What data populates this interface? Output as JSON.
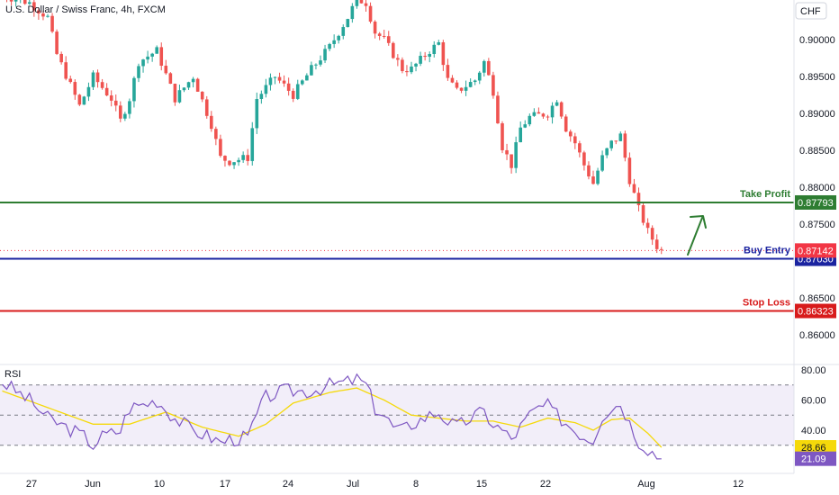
{
  "chart_title": "U.S. Dollar / Swiss Franc, 4h, FXCM",
  "currency_label": "CHF",
  "price_axis": {
    "ticks": [
      "0.90000",
      "0.89500",
      "0.89000",
      "0.88500",
      "0.88000",
      "0.87500",
      "0.86500",
      "0.86000"
    ]
  },
  "time_axis": {
    "ticks": [
      "27",
      "Jun",
      "10",
      "17",
      "24",
      "Jul",
      "8",
      "15",
      "22",
      "Aug",
      "12"
    ]
  },
  "levels": [
    {
      "name": "Take Profit",
      "value": 0.87793,
      "label": "0.87793",
      "color": "#2e7d32"
    },
    {
      "name": "Buy Entry",
      "value": 0.8703,
      "label": "0.87030",
      "color": "#1a23a0"
    },
    {
      "name": "Stop Loss",
      "value": 0.86323,
      "label": "0.86323",
      "color": "#d81b1b"
    }
  ],
  "current_price": {
    "value": 0.87142,
    "label": "0.87142",
    "color": "#f23645"
  },
  "rsi": {
    "label": "RSI",
    "ticks": [
      "80.00",
      "60.00",
      "40.00"
    ],
    "upper_band": 70,
    "middle_band": 50,
    "lower_band": 30,
    "ma_value_label": "28.66",
    "rsi_value_label": "21.09",
    "ma_color": "#f5d90a",
    "rsi_color": "#7e57c2"
  },
  "colors": {
    "up": "#26a69a",
    "down": "#ef5350",
    "accent_arrow": "#2e7d32"
  },
  "chart_data": {
    "type": "candlestick",
    "title": "U.S. Dollar / Swiss Franc, 4h, FXCM",
    "ylabel": "CHF",
    "ylim": [
      0.8575,
      0.9055
    ],
    "key_path": [
      [
        0,
        0.906
      ],
      [
        6,
        0.905
      ],
      [
        10,
        0.903
      ],
      [
        12,
        0.898
      ],
      [
        17,
        0.891
      ],
      [
        20,
        0.895
      ],
      [
        24,
        0.892
      ],
      [
        26,
        0.889
      ],
      [
        28,
        0.892
      ],
      [
        30,
        0.897
      ],
      [
        34,
        0.8985
      ],
      [
        38,
        0.892
      ],
      [
        42,
        0.895
      ],
      [
        46,
        0.8885
      ],
      [
        48,
        0.884
      ],
      [
        50,
        0.8835
      ],
      [
        54,
        0.884
      ],
      [
        56,
        0.892
      ],
      [
        60,
        0.895
      ],
      [
        64,
        0.8925
      ],
      [
        68,
        0.896
      ],
      [
        72,
        0.899
      ],
      [
        76,
        0.903
      ],
      [
        78,
        0.9055
      ],
      [
        80,
        0.905
      ],
      [
        82,
        0.901
      ],
      [
        84,
        0.9
      ],
      [
        86,
        0.898
      ],
      [
        88,
        0.896
      ],
      [
        90,
        0.896
      ],
      [
        94,
        0.8985
      ],
      [
        96,
        0.8995
      ],
      [
        98,
        0.8945
      ],
      [
        100,
        0.893
      ],
      [
        104,
        0.8945
      ],
      [
        106,
        0.897
      ],
      [
        108,
        0.893
      ],
      [
        110,
        0.8855
      ],
      [
        112,
        0.883
      ],
      [
        114,
        0.888
      ],
      [
        116,
        0.8895
      ],
      [
        120,
        0.89
      ],
      [
        122,
        0.892
      ],
      [
        124,
        0.888
      ],
      [
        126,
        0.886
      ],
      [
        128,
        0.883
      ],
      [
        130,
        0.8805
      ],
      [
        132,
        0.884
      ],
      [
        134,
        0.886
      ],
      [
        136,
        0.887
      ],
      [
        138,
        0.881
      ],
      [
        140,
        0.877
      ],
      [
        142,
        0.874
      ],
      [
        144,
        0.872
      ],
      [
        145,
        0.8714
      ]
    ],
    "levels": {
      "take_profit": 0.87793,
      "buy_entry": 0.8703,
      "stop_loss": 0.86323,
      "last_price": 0.87142
    },
    "rsi_key_path": [
      [
        0,
        72
      ],
      [
        6,
        60
      ],
      [
        10,
        48
      ],
      [
        14,
        42
      ],
      [
        18,
        36
      ],
      [
        20,
        30
      ],
      [
        22,
        36
      ],
      [
        26,
        40
      ],
      [
        28,
        55
      ],
      [
        32,
        58
      ],
      [
        34,
        60
      ],
      [
        38,
        48
      ],
      [
        42,
        40
      ],
      [
        46,
        35
      ],
      [
        48,
        32
      ],
      [
        50,
        34
      ],
      [
        54,
        35
      ],
      [
        56,
        50
      ],
      [
        58,
        62
      ],
      [
        62,
        66
      ],
      [
        68,
        66
      ],
      [
        72,
        70
      ],
      [
        76,
        72
      ],
      [
        78,
        74
      ],
      [
        80,
        70
      ],
      [
        82,
        55
      ],
      [
        84,
        50
      ],
      [
        86,
        42
      ],
      [
        88,
        40
      ],
      [
        90,
        44
      ],
      [
        94,
        50
      ],
      [
        96,
        52
      ],
      [
        98,
        46
      ],
      [
        100,
        42
      ],
      [
        104,
        50
      ],
      [
        106,
        52
      ],
      [
        108,
        44
      ],
      [
        110,
        40
      ],
      [
        112,
        34
      ],
      [
        116,
        50
      ],
      [
        118,
        55
      ],
      [
        120,
        56
      ],
      [
        122,
        50
      ],
      [
        124,
        45
      ],
      [
        126,
        40
      ],
      [
        128,
        36
      ],
      [
        130,
        34
      ],
      [
        132,
        50
      ],
      [
        134,
        55
      ],
      [
        136,
        58
      ],
      [
        138,
        45
      ],
      [
        140,
        33
      ],
      [
        142,
        28
      ],
      [
        145,
        21
      ]
    ],
    "rsi_ma_key_path": [
      [
        0,
        66
      ],
      [
        10,
        55
      ],
      [
        20,
        44
      ],
      [
        28,
        44
      ],
      [
        36,
        52
      ],
      [
        44,
        42
      ],
      [
        52,
        36
      ],
      [
        58,
        44
      ],
      [
        64,
        58
      ],
      [
        72,
        65
      ],
      [
        78,
        68
      ],
      [
        84,
        60
      ],
      [
        90,
        50
      ],
      [
        96,
        48
      ],
      [
        102,
        46
      ],
      [
        108,
        46
      ],
      [
        114,
        42
      ],
      [
        120,
        48
      ],
      [
        126,
        45
      ],
      [
        130,
        40
      ],
      [
        134,
        47
      ],
      [
        138,
        48
      ],
      [
        142,
        38
      ],
      [
        145,
        28.66
      ]
    ],
    "rsi_ylim": [
      10,
      85
    ]
  }
}
